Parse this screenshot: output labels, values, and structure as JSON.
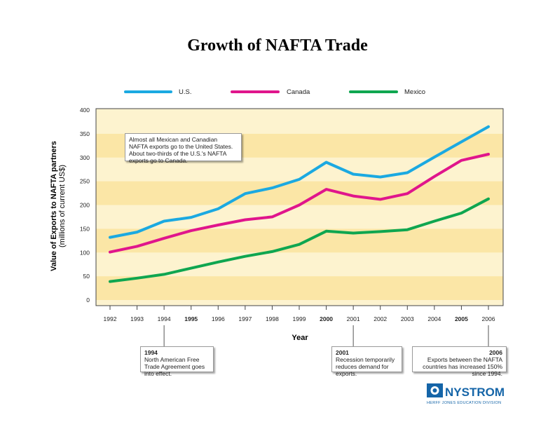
{
  "colors": {
    "us": "#1ba9e1",
    "canada": "#e0158c",
    "mexico": "#0fa650",
    "title": "#1565a8",
    "band": "#fdf3cf",
    "band_alt": "#fbe6a6"
  },
  "chart_data": {
    "type": "line",
    "title": "Growth of NAFTA Trade",
    "xlabel": "Year",
    "ylabel": "Value of Exports to NAFTA partners",
    "ylabel_sub": "(millions of current US$)",
    "ylim": [
      0,
      400
    ],
    "y_ticks": [
      0,
      50,
      100,
      150,
      200,
      250,
      300,
      350,
      400
    ],
    "categories": [
      "1992",
      "1993",
      "1994",
      "1995",
      "1996",
      "1997",
      "1998",
      "1999",
      "2000",
      "2001",
      "2002",
      "2003",
      "2004",
      "2005",
      "2006"
    ],
    "bold_categories": [
      "1995",
      "2000",
      "2005"
    ],
    "legend_position": "top",
    "series": [
      {
        "name": "U.S.",
        "key": "us",
        "values": [
          132,
          143,
          166,
          174,
          192,
          224,
          236,
          254,
          290,
          265,
          259,
          268,
          301,
          333,
          365
        ]
      },
      {
        "name": "Canada",
        "key": "canada",
        "values": [
          101,
          113,
          130,
          146,
          158,
          169,
          175,
          200,
          233,
          219,
          212,
          224,
          260,
          294,
          307
        ]
      },
      {
        "name": "Mexico",
        "key": "mexico",
        "values": [
          39,
          46,
          54,
          67,
          80,
          92,
          102,
          117,
          145,
          141,
          144,
          148,
          166,
          183,
          213
        ]
      }
    ],
    "annotation": "Almost all Mexican and Canadian NAFTA exports go to the United States.  About two-thirds of the U.S.'s NAFTA exports go to Canada."
  },
  "callouts": [
    {
      "year": "1994",
      "text": "North American Free Trade Agreement goes into effect."
    },
    {
      "year": "2001",
      "text": "Recession temporarily reduces demand for exports."
    },
    {
      "year": "2006",
      "text": "Exports between the NAFTA countries has increased 150% since 1994."
    }
  ],
  "publisher": {
    "name": "NYSTROM",
    "division": "HERFF JONES EDUCATION DIVISION"
  }
}
